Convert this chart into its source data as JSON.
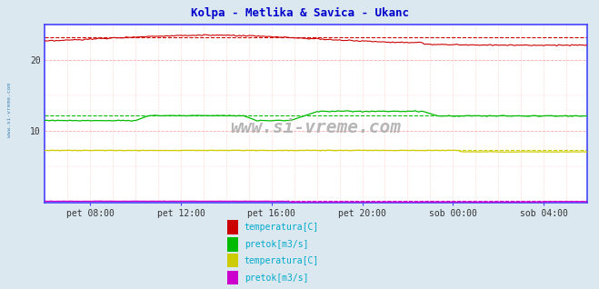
{
  "title": "Kolpa - Metlika & Savica - Ukanc",
  "title_color": "#0000cc",
  "bg_color": "#dce8f0",
  "plot_bg_color": "#ffffff",
  "watermark": "www.si-vreme.com",
  "xlim": [
    0,
    287
  ],
  "ylim": [
    0,
    25
  ],
  "yticks": [
    10,
    20
  ],
  "xtick_labels": [
    "pet 08:00",
    "pet 12:00",
    "pet 16:00",
    "pet 20:00",
    "sob 00:00",
    "sob 04:00"
  ],
  "xtick_positions": [
    24,
    72,
    120,
    168,
    216,
    264
  ],
  "legend_items": [
    {
      "label": "temperatura[C]",
      "color": "#cc0000"
    },
    {
      "label": "pretok[m3/s]",
      "color": "#00bb00"
    },
    {
      "label": "temperatura[C]",
      "color": "#cccc00"
    },
    {
      "label": "pretok[m3/s]",
      "color": "#cc00cc"
    }
  ],
  "legend_text_color": "#00aacc",
  "border_color": "#4444ff",
  "n_points": 288,
  "kolpa_temp_base": 22.3,
  "kolpa_temp_peak": 23.5,
  "kolpa_temp_avg": 23.2,
  "kolpa_pretok_base": 11.5,
  "kolpa_pretok_step1": 12.2,
  "kolpa_pretok_step2": 12.8,
  "kolpa_pretok_avg": 12.2,
  "savica_temp_base": 7.3,
  "savica_temp_avg": 7.3,
  "savica_pretok_base": 0.15,
  "savica_pretok_avg": 0.15
}
